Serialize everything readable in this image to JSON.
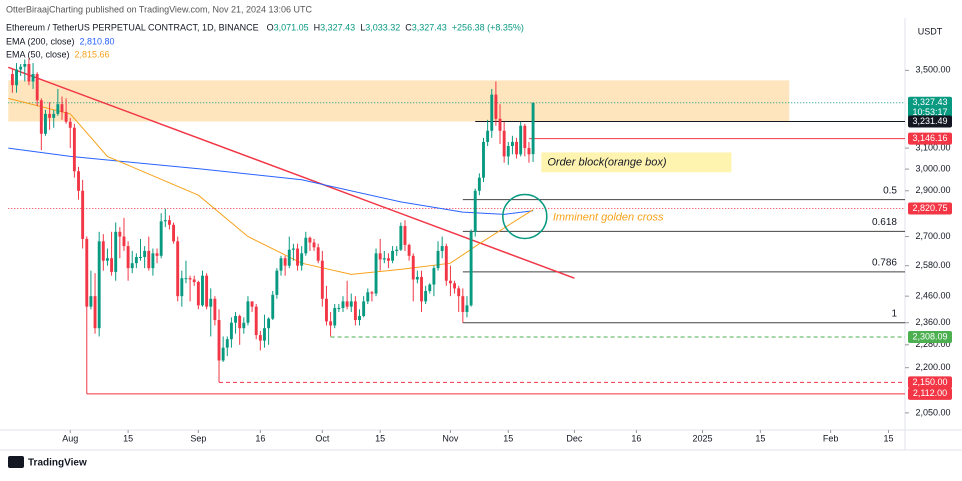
{
  "header": {
    "publisher": "OtterBiraajCharting published on TradingView.com, Nov 21, 2024 13:06 UTC"
  },
  "chart_data": {
    "type": "candlestick",
    "symbol": "Ethereum / TetherUS PERPETUAL CONTRACT, 1D, BINANCE",
    "ohlc_legend": [
      [
        "O",
        "3,071.05"
      ],
      [
        "H",
        "3,327.43"
      ],
      [
        "L",
        "3,033.32"
      ],
      [
        "C",
        "3,327.43"
      ]
    ],
    "change": "+256.38 (+8.35%)",
    "currency": "USDT",
    "up_color": "#089981",
    "down_color": "#f23645",
    "log_scale": true,
    "grid": false,
    "xlim": [
      "2024-07-15",
      "2025-02-19"
    ],
    "xticks": [
      {
        "value": "2024-08-01",
        "label": "Aug"
      },
      {
        "value": "2024-08-15",
        "label": "15"
      },
      {
        "value": "2024-09-01",
        "label": "Sep"
      },
      {
        "value": "2024-09-16",
        "label": "16"
      },
      {
        "value": "2024-10-01",
        "label": "Oct"
      },
      {
        "value": "2024-10-15",
        "label": "15"
      },
      {
        "value": "2024-11-01",
        "label": "Nov"
      },
      {
        "value": "2024-11-15",
        "label": "15"
      },
      {
        "value": "2024-12-01",
        "label": "Dec"
      },
      {
        "value": "2024-12-16",
        "label": "16"
      },
      {
        "value": "2025-01-01",
        "label": "2025"
      },
      {
        "value": "2025-01-15",
        "label": "15"
      },
      {
        "value": "2025-02-01",
        "label": "Feb"
      },
      {
        "value": "2025-02-15",
        "label": "15"
      }
    ],
    "ylim": [
      1996,
      3670
    ],
    "yticks": [
      {
        "value": 3500,
        "label": "3,500.00"
      },
      {
        "value": 3100,
        "label": "3,100.00"
      },
      {
        "value": 3000,
        "label": "3,000.00"
      },
      {
        "value": 2900,
        "label": "2,900.00"
      },
      {
        "value": 2700,
        "label": "2,700.00"
      },
      {
        "value": 2580,
        "label": "2,580.00"
      },
      {
        "value": 2460,
        "label": "2,460.00"
      },
      {
        "value": 2360,
        "label": "2,360.00"
      },
      {
        "value": 2280,
        "label": "2,280.00"
      },
      {
        "value": 2200,
        "label": "2,200.00"
      },
      {
        "value": 2050,
        "label": "2,050.00"
      }
    ],
    "candles": [
      [
        "2024-07-18",
        3480,
        3510,
        3380,
        3420
      ],
      [
        "2024-07-19",
        3420,
        3540,
        3380,
        3505
      ],
      [
        "2024-07-20",
        3505,
        3535,
        3470,
        3520
      ],
      [
        "2024-07-21",
        3520,
        3560,
        3440,
        3535
      ],
      [
        "2024-07-22",
        3535,
        3565,
        3420,
        3440
      ],
      [
        "2024-07-23",
        3440,
        3540,
        3400,
        3480
      ],
      [
        "2024-07-24",
        3480,
        3490,
        3310,
        3340
      ],
      [
        "2024-07-25",
        3340,
        3350,
        3090,
        3170
      ],
      [
        "2024-07-26",
        3170,
        3290,
        3160,
        3270
      ],
      [
        "2024-07-27",
        3270,
        3330,
        3190,
        3250
      ],
      [
        "2024-07-28",
        3250,
        3290,
        3200,
        3270
      ],
      [
        "2024-07-29",
        3270,
        3400,
        3260,
        3320
      ],
      [
        "2024-07-30",
        3320,
        3360,
        3240,
        3280
      ],
      [
        "2024-07-31",
        3280,
        3350,
        3220,
        3230
      ],
      [
        "2024-08-01",
        3230,
        3250,
        3100,
        3200
      ],
      [
        "2024-08-02",
        3200,
        3220,
        2960,
        2990
      ],
      [
        "2024-08-03",
        2990,
        3010,
        2860,
        2900
      ],
      [
        "2024-08-04",
        2900,
        2950,
        2650,
        2690
      ],
      [
        "2024-08-05",
        2690,
        2700,
        2112,
        2420
      ],
      [
        "2024-08-06",
        2420,
        2560,
        2410,
        2460
      ],
      [
        "2024-08-07",
        2460,
        2550,
        2320,
        2340
      ],
      [
        "2024-08-08",
        2340,
        2720,
        2310,
        2680
      ],
      [
        "2024-08-09",
        2680,
        2710,
        2560,
        2600
      ],
      [
        "2024-08-10",
        2600,
        2650,
        2580,
        2610
      ],
      [
        "2024-08-11",
        2610,
        2720,
        2540,
        2555
      ],
      [
        "2024-08-12",
        2555,
        2760,
        2520,
        2720
      ],
      [
        "2024-08-13",
        2720,
        2740,
        2610,
        2700
      ],
      [
        "2024-08-14",
        2700,
        2780,
        2640,
        2660
      ],
      [
        "2024-08-15",
        2660,
        2680,
        2520,
        2570
      ],
      [
        "2024-08-16",
        2570,
        2640,
        2550,
        2590
      ],
      [
        "2024-08-17",
        2590,
        2630,
        2570,
        2615
      ],
      [
        "2024-08-18",
        2615,
        2690,
        2600,
        2615
      ],
      [
        "2024-08-19",
        2615,
        2660,
        2570,
        2640
      ],
      [
        "2024-08-20",
        2640,
        2700,
        2560,
        2570
      ],
      [
        "2024-08-21",
        2570,
        2650,
        2540,
        2630
      ],
      [
        "2024-08-22",
        2630,
        2650,
        2590,
        2620
      ],
      [
        "2024-08-23",
        2620,
        2800,
        2610,
        2765
      ],
      [
        "2024-08-24",
        2765,
        2820,
        2740,
        2770
      ],
      [
        "2024-08-25",
        2770,
        2790,
        2730,
        2750
      ],
      [
        "2024-08-26",
        2750,
        2760,
        2670,
        2680
      ],
      [
        "2024-08-27",
        2680,
        2700,
        2440,
        2460
      ],
      [
        "2024-08-28",
        2460,
        2560,
        2420,
        2530
      ],
      [
        "2024-08-29",
        2530,
        2600,
        2510,
        2530
      ],
      [
        "2024-08-30",
        2530,
        2540,
        2440,
        2525
      ],
      [
        "2024-08-31",
        2525,
        2540,
        2500,
        2515
      ],
      [
        "2024-09-01",
        2515,
        2520,
        2410,
        2425
      ],
      [
        "2024-09-02",
        2425,
        2560,
        2420,
        2540
      ],
      [
        "2024-09-03",
        2540,
        2550,
        2410,
        2420
      ],
      [
        "2024-09-04",
        2420,
        2490,
        2310,
        2450
      ],
      [
        "2024-09-05",
        2450,
        2460,
        2350,
        2370
      ],
      [
        "2024-09-06",
        2370,
        2410,
        2150,
        2225
      ],
      [
        "2024-09-07",
        2225,
        2310,
        2220,
        2270
      ],
      [
        "2024-09-08",
        2270,
        2310,
        2240,
        2300
      ],
      [
        "2024-09-09",
        2300,
        2380,
        2270,
        2360
      ],
      [
        "2024-09-10",
        2360,
        2400,
        2320,
        2385
      ],
      [
        "2024-09-11",
        2385,
        2390,
        2280,
        2340
      ],
      [
        "2024-09-12",
        2340,
        2380,
        2320,
        2360
      ],
      [
        "2024-09-13",
        2360,
        2460,
        2350,
        2440
      ],
      [
        "2024-09-14",
        2440,
        2440,
        2400,
        2420
      ],
      [
        "2024-09-15",
        2420,
        2430,
        2300,
        2315
      ],
      [
        "2024-09-16",
        2315,
        2330,
        2260,
        2295
      ],
      [
        "2024-09-17",
        2295,
        2390,
        2270,
        2340
      ],
      [
        "2024-09-18",
        2340,
        2380,
        2280,
        2375
      ],
      [
        "2024-09-19",
        2375,
        2480,
        2370,
        2465
      ],
      [
        "2024-09-20",
        2465,
        2570,
        2450,
        2560
      ],
      [
        "2024-09-21",
        2560,
        2620,
        2540,
        2610
      ],
      [
        "2024-09-22",
        2610,
        2620,
        2540,
        2580
      ],
      [
        "2024-09-23",
        2580,
        2700,
        2570,
        2645
      ],
      [
        "2024-09-24",
        2645,
        2670,
        2600,
        2650
      ],
      [
        "2024-09-25",
        2650,
        2670,
        2560,
        2580
      ],
      [
        "2024-09-26",
        2580,
        2660,
        2560,
        2630
      ],
      [
        "2024-09-27",
        2630,
        2720,
        2620,
        2695
      ],
      [
        "2024-09-28",
        2695,
        2700,
        2640,
        2675
      ],
      [
        "2024-09-29",
        2675,
        2690,
        2640,
        2655
      ],
      [
        "2024-09-30",
        2655,
        2670,
        2590,
        2600
      ],
      [
        "2024-10-01",
        2600,
        2640,
        2420,
        2450
      ],
      [
        "2024-10-02",
        2450,
        2500,
        2350,
        2365
      ],
      [
        "2024-10-03",
        2365,
        2400,
        2310,
        2350
      ],
      [
        "2024-10-04",
        2350,
        2430,
        2340,
        2415
      ],
      [
        "2024-10-05",
        2415,
        2430,
        2400,
        2415
      ],
      [
        "2024-10-06",
        2415,
        2460,
        2400,
        2440
      ],
      [
        "2024-10-07",
        2440,
        2520,
        2410,
        2420
      ],
      [
        "2024-10-08",
        2420,
        2470,
        2400,
        2440
      ],
      [
        "2024-10-09",
        2440,
        2460,
        2350,
        2370
      ],
      [
        "2024-10-10",
        2370,
        2410,
        2350,
        2385
      ],
      [
        "2024-10-11",
        2385,
        2460,
        2380,
        2440
      ],
      [
        "2024-10-12",
        2440,
        2490,
        2430,
        2475
      ],
      [
        "2024-10-13",
        2475,
        2480,
        2440,
        2470
      ],
      [
        "2024-10-14",
        2470,
        2650,
        2460,
        2630
      ],
      [
        "2024-10-15",
        2630,
        2690,
        2560,
        2605
      ],
      [
        "2024-10-16",
        2605,
        2640,
        2590,
        2610
      ],
      [
        "2024-10-17",
        2610,
        2630,
        2570,
        2600
      ],
      [
        "2024-10-18",
        2600,
        2660,
        2590,
        2640
      ],
      [
        "2024-10-19",
        2640,
        2660,
        2620,
        2645
      ],
      [
        "2024-10-20",
        2645,
        2760,
        2640,
        2745
      ],
      [
        "2024-10-21",
        2745,
        2770,
        2640,
        2665
      ],
      [
        "2024-10-22",
        2665,
        2670,
        2600,
        2620
      ],
      [
        "2024-10-23",
        2620,
        2630,
        2440,
        2525
      ],
      [
        "2024-10-24",
        2525,
        2560,
        2510,
        2535
      ],
      [
        "2024-10-25",
        2535,
        2560,
        2400,
        2440
      ],
      [
        "2024-10-26",
        2440,
        2500,
        2430,
        2480
      ],
      [
        "2024-10-27",
        2480,
        2510,
        2470,
        2505
      ],
      [
        "2024-10-28",
        2505,
        2580,
        2460,
        2570
      ],
      [
        "2024-10-29",
        2570,
        2680,
        2560,
        2640
      ],
      [
        "2024-10-30",
        2640,
        2700,
        2610,
        2660
      ],
      [
        "2024-10-31",
        2660,
        2670,
        2500,
        2520
      ],
      [
        "2024-11-01",
        2520,
        2580,
        2460,
        2510
      ],
      [
        "2024-11-02",
        2510,
        2520,
        2470,
        2490
      ],
      [
        "2024-11-03",
        2490,
        2500,
        2400,
        2460
      ],
      [
        "2024-11-04",
        2460,
        2490,
        2360,
        2400
      ],
      [
        "2024-11-05",
        2400,
        2460,
        2380,
        2425
      ],
      [
        "2024-11-06",
        2425,
        2730,
        2420,
        2720
      ],
      [
        "2024-11-07",
        2720,
        2910,
        2700,
        2900
      ],
      [
        "2024-11-08",
        2900,
        2980,
        2880,
        2960
      ],
      [
        "2024-11-09",
        2960,
        3150,
        2940,
        3130
      ],
      [
        "2024-11-10",
        3130,
        3240,
        3110,
        3185
      ],
      [
        "2024-11-11",
        3185,
        3400,
        3150,
        3370
      ],
      [
        "2024-11-12",
        3370,
        3440,
        3210,
        3245
      ],
      [
        "2024-11-13",
        3245,
        3320,
        3120,
        3185
      ],
      [
        "2024-11-14",
        3185,
        3230,
        3030,
        3060
      ],
      [
        "2024-11-15",
        3060,
        3130,
        3020,
        3110
      ],
      [
        "2024-11-16",
        3110,
        3160,
        3070,
        3130
      ],
      [
        "2024-11-17",
        3130,
        3150,
        3050,
        3070
      ],
      [
        "2024-11-18",
        3070,
        3230,
        3060,
        3210
      ],
      [
        "2024-11-19",
        3210,
        3220,
        3060,
        3100
      ],
      [
        "2024-11-20",
        3100,
        3130,
        3030,
        3070
      ],
      [
        "2024-11-21",
        3071.05,
        3327.43,
        3033.32,
        3327.43
      ]
    ],
    "series": [
      {
        "name": "EMA (200, close)",
        "value_label": "2,810.80",
        "color": "#2962ff",
        "points": [
          [
            "2024-07-17",
            3100
          ],
          [
            "2024-08-01",
            3060
          ],
          [
            "2024-09-02",
            3000
          ],
          [
            "2024-09-26",
            2950
          ],
          [
            "2024-10-20",
            2850
          ],
          [
            "2024-11-04",
            2805
          ],
          [
            "2024-11-14",
            2795
          ],
          [
            "2024-11-21",
            2810.8
          ]
        ]
      },
      {
        "name": "EMA (50, close)",
        "value_label": "2,815.66",
        "color": "#f7a21b",
        "points": [
          [
            "2024-07-17",
            3350
          ],
          [
            "2024-08-01",
            3270
          ],
          [
            "2024-08-10",
            3060
          ],
          [
            "2024-09-01",
            2880
          ],
          [
            "2024-09-13",
            2700
          ],
          [
            "2024-09-26",
            2590
          ],
          [
            "2024-10-08",
            2545
          ],
          [
            "2024-10-20",
            2565
          ],
          [
            "2024-11-01",
            2590
          ],
          [
            "2024-11-08",
            2670
          ],
          [
            "2024-11-21",
            2815.66
          ]
        ]
      }
    ],
    "price_levels": [
      {
        "value": 3327.43,
        "label": "3,327.43",
        "countdown": "10:53:17",
        "color": "#089981",
        "line": "dotted",
        "from": "2024-07-17"
      },
      {
        "value": 3231.49,
        "label": "3,231.49",
        "color": "#131722",
        "line": "solid",
        "from": "2024-11-07"
      },
      {
        "value": 3146.16,
        "label": "3,146.16",
        "color": "#f23645",
        "line": "solid",
        "from": "2024-11-20"
      },
      {
        "value": 2820.75,
        "label": "2,820.75",
        "color": "#f23645",
        "line": "dotted",
        "from": "2024-07-17"
      },
      {
        "value": 2308.09,
        "label": "2,308.09",
        "color": "#4caf50",
        "line": "dashed",
        "from": "2024-10-03"
      },
      {
        "value": 2150,
        "label": "2,150.00",
        "color": "#f23645",
        "line": "dashed",
        "from": "2024-09-06"
      },
      {
        "value": 2112,
        "label": "2,112.00",
        "color": "#f23645",
        "line": "solid",
        "from": "2024-08-05"
      }
    ],
    "supply_zone": {
      "from": "2024-07-17",
      "to": "2025-01-22",
      "top": 3446,
      "bottom": 3231.49,
      "color": "#ffe0b2"
    },
    "order_block": {
      "label": "Order block(orange box)",
      "from": "2024-11-23",
      "to": "2025-01-08",
      "top": 3079,
      "bottom": 2985,
      "color": "#fff3b0"
    },
    "trendline": {
      "from": [
        "2024-07-17",
        3517
      ],
      "to": [
        "2024-12-01",
        2530
      ],
      "color": "#f23645"
    },
    "golden_cross": {
      "label": "Imminent golden cross",
      "center": [
        "2024-11-19",
        2786
      ],
      "color": "#f7a21b",
      "ring_color": "#089981"
    },
    "fib_from": "2024-11-04",
    "fib": [
      {
        "label": "0.5",
        "value": 2860
      },
      {
        "label": "0.618",
        "value": 2722
      },
      {
        "label": "0.786",
        "value": 2555
      },
      {
        "label": "1",
        "value": 2360
      }
    ]
  },
  "footer": {
    "brand": "TradingView"
  }
}
